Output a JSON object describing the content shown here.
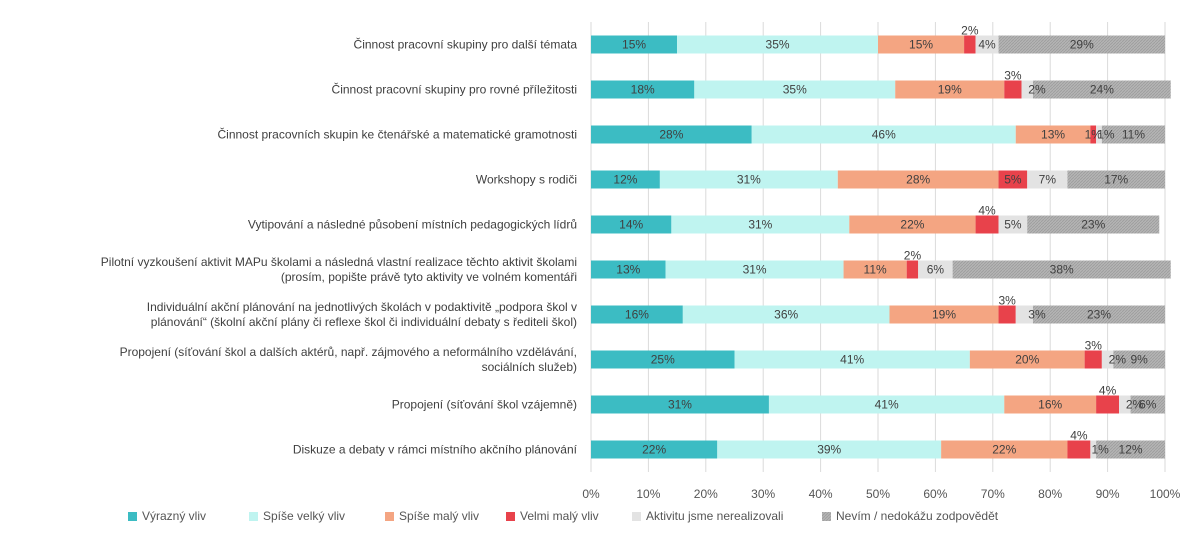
{
  "chart_data": {
    "type": "bar",
    "orientation": "horizontal",
    "stacked": true,
    "percent_stacked": true,
    "xlim": [
      0,
      100
    ],
    "xticks": [
      "0%",
      "10%",
      "20%",
      "30%",
      "40%",
      "50%",
      "60%",
      "70%",
      "80%",
      "90%",
      "100%"
    ],
    "grid": true,
    "legend_position": "bottom",
    "categories": [
      [
        "Činnost pracovní skupiny pro další témata"
      ],
      [
        "Činnost pracovní skupiny pro rovné příležitosti"
      ],
      [
        "Činnost pracovních skupin ke čtenářské a matematické gramotnosti"
      ],
      [
        "Workshopy s rodiči"
      ],
      [
        "Vytipování a následné působení místních pedagogických lídrů"
      ],
      [
        "Pilotní vyzkoušení aktivit MAPu školami a následná vlastní realizace těchto aktivit školami",
        "(prosím, popište právě tyto aktivity ve volném komentáři"
      ],
      [
        "Individuální akční plánování na jednotlivých školách v podaktivitě „podpora škol v",
        "plánování“ (školní akční plány či reflexe škol či individuální debaty s řediteli škol)"
      ],
      [
        "Propojení (síťování škol a dalších aktérů, např. zájmového a neformálního vzdělávání,",
        "sociálních služeb)"
      ],
      [
        "Propojení (síťování škol vzájemně)"
      ],
      [
        "Diskuze a debaty v rámci místního akčního plánování"
      ]
    ],
    "series": [
      {
        "name": "Výrazný vliv",
        "color": "#3CBCC3",
        "values": [
          15,
          18,
          28,
          12,
          14,
          13,
          16,
          25,
          31,
          22
        ],
        "labels": [
          "15%",
          "18%",
          "28%",
          "12%",
          "14%",
          "13%",
          "16%",
          "25%",
          "31%",
          "22%"
        ]
      },
      {
        "name": "Spíše velký vliv",
        "color": "#BFF4F0",
        "values": [
          35,
          35,
          46,
          31,
          31,
          31,
          36,
          41,
          41,
          39
        ],
        "labels": [
          "35%",
          "35%",
          "46%",
          "31%",
          "31%",
          "31%",
          "36%",
          "41%",
          "41%",
          "39%"
        ]
      },
      {
        "name": "Spíše malý vliv",
        "color": "#F4A582",
        "values": [
          15,
          19,
          13,
          28,
          22,
          11,
          19,
          20,
          16,
          22
        ],
        "labels": [
          "15%",
          "19%",
          "13%",
          "28%",
          "22%",
          "11%",
          "19%",
          "20%",
          "16%",
          "22%"
        ]
      },
      {
        "name": "Velmi malý vliv",
        "color": "#E8424B",
        "values": [
          2,
          3,
          1,
          5,
          4,
          2,
          3,
          3,
          4,
          4
        ],
        "labels": [
          "2%",
          "3%",
          "1%",
          "5%",
          "4%",
          "2%",
          "3%",
          "3%",
          "4%",
          "4%"
        ]
      },
      {
        "name": "Aktivitu jsme nerealizovali",
        "color": "#E3E3E3",
        "values": [
          4,
          2,
          1,
          7,
          5,
          6,
          3,
          2,
          2,
          1
        ],
        "labels": [
          "4%",
          "2%",
          "1%",
          "7%",
          "5%",
          "6%",
          "3%",
          "2%",
          "2%",
          "1%"
        ]
      },
      {
        "name": "Nevím / nedokážu zodpovědět",
        "color": "#B4B4B4",
        "values": [
          29,
          24,
          11,
          17,
          23,
          38,
          23,
          9,
          6,
          12
        ],
        "labels": [
          "29%",
          "24%",
          "11%",
          "17%",
          "23%",
          "38%",
          "23%",
          "9%",
          "6%",
          "12%"
        ]
      }
    ]
  }
}
